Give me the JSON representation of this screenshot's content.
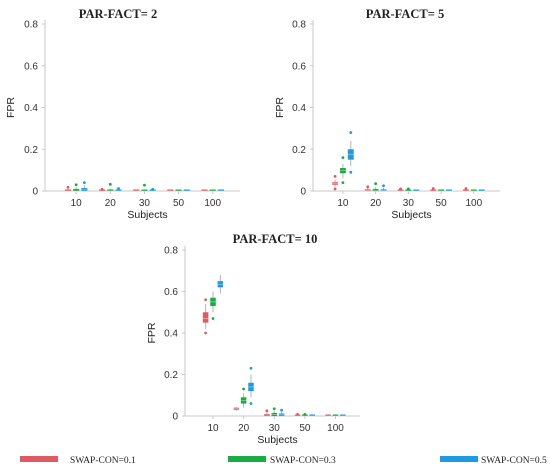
{
  "chart_data": [
    {
      "type": "box",
      "title": "PAR-FACT= 2",
      "xlabel": "Subjects",
      "ylabel": "FPR",
      "ylim": [
        0,
        0.8
      ],
      "yticks": [
        "0",
        "0.2",
        "0.4",
        "0.6",
        "0.8"
      ],
      "categories": [
        "10",
        "20",
        "30",
        "50",
        "100"
      ],
      "series": [
        {
          "name": "SWAP-CON=0.1",
          "boxes": [
            {
              "q1": 0.0,
              "median": 0.0,
              "q3": 0.006,
              "min": 0.0,
              "max": 0.012,
              "outliers": [
                0.018
              ]
            },
            {
              "q1": 0.0,
              "median": 0.0,
              "q3": 0.002,
              "min": 0.0,
              "max": 0.004,
              "outliers": [
                0.008
              ]
            },
            {
              "q1": 0.0,
              "median": 0.0,
              "q3": 0.001,
              "min": 0.0,
              "max": 0.002,
              "outliers": []
            },
            {
              "q1": 0.0,
              "median": 0.0,
              "q3": 0.001,
              "min": 0.0,
              "max": 0.002,
              "outliers": []
            },
            {
              "q1": 0.0,
              "median": 0.0,
              "q3": 0.001,
              "min": 0.0,
              "max": 0.002,
              "outliers": []
            }
          ]
        },
        {
          "name": "SWAP-CON=0.3",
          "boxes": [
            {
              "q1": 0.0,
              "median": 0.0,
              "q3": 0.01,
              "min": 0.0,
              "max": 0.02,
              "outliers": [
                0.03
              ]
            },
            {
              "q1": 0.0,
              "median": 0.0,
              "q3": 0.005,
              "min": 0.0,
              "max": 0.01,
              "outliers": [
                0.032
              ]
            },
            {
              "q1": 0.0,
              "median": 0.0,
              "q3": 0.004,
              "min": 0.0,
              "max": 0.008,
              "outliers": [
                0.028
              ]
            },
            {
              "q1": 0.0,
              "median": 0.0,
              "q3": 0.001,
              "min": 0.0,
              "max": 0.002,
              "outliers": []
            },
            {
              "q1": 0.0,
              "median": 0.0,
              "q3": 0.001,
              "min": 0.0,
              "max": 0.002,
              "outliers": []
            }
          ]
        },
        {
          "name": "SWAP-CON=0.5",
          "boxes": [
            {
              "q1": 0.0,
              "median": 0.005,
              "q3": 0.014,
              "min": 0.0,
              "max": 0.028,
              "outliers": [
                0.04
              ]
            },
            {
              "q1": 0.0,
              "median": 0.0,
              "q3": 0.004,
              "min": 0.0,
              "max": 0.008,
              "outliers": [
                0.012
              ]
            },
            {
              "q1": 0.0,
              "median": 0.0,
              "q3": 0.002,
              "min": 0.0,
              "max": 0.005,
              "outliers": [
                0.008
              ]
            },
            {
              "q1": 0.0,
              "median": 0.0,
              "q3": 0.001,
              "min": 0.0,
              "max": 0.002,
              "outliers": []
            },
            {
              "q1": 0.0,
              "median": 0.0,
              "q3": 0.001,
              "min": 0.0,
              "max": 0.002,
              "outliers": []
            }
          ]
        }
      ]
    },
    {
      "type": "box",
      "title": "PAR-FACT= 5",
      "xlabel": "Subjects",
      "ylabel": "FPR",
      "ylim": [
        0,
        0.8
      ],
      "yticks": [
        "0",
        "0.2",
        "0.4",
        "0.6",
        "0.8"
      ],
      "categories": [
        "10",
        "20",
        "30",
        "50",
        "100"
      ],
      "series": [
        {
          "name": "SWAP-CON=0.1",
          "boxes": [
            {
              "q1": 0.03,
              "median": 0.035,
              "q3": 0.042,
              "min": 0.02,
              "max": 0.055,
              "outliers": [
                0.07,
                0.01
              ]
            },
            {
              "q1": 0.0,
              "median": 0.003,
              "q3": 0.008,
              "min": 0.0,
              "max": 0.014,
              "outliers": [
                0.02
              ]
            },
            {
              "q1": 0.0,
              "median": 0.0,
              "q3": 0.003,
              "min": 0.0,
              "max": 0.006,
              "outliers": [
                0.01
              ]
            },
            {
              "q1": 0.0,
              "median": 0.0,
              "q3": 0.002,
              "min": 0.0,
              "max": 0.004,
              "outliers": [
                0.012
              ]
            },
            {
              "q1": 0.0,
              "median": 0.0,
              "q3": 0.002,
              "min": 0.0,
              "max": 0.004,
              "outliers": [
                0.012
              ]
            }
          ]
        },
        {
          "name": "SWAP-CON=0.3",
          "boxes": [
            {
              "q1": 0.085,
              "median": 0.098,
              "q3": 0.11,
              "min": 0.06,
              "max": 0.13,
              "outliers": [
                0.16,
                0.04
              ]
            },
            {
              "q1": 0.0,
              "median": 0.004,
              "q3": 0.01,
              "min": 0.0,
              "max": 0.02,
              "outliers": [
                0.035
              ]
            },
            {
              "q1": 0.0,
              "median": 0.0,
              "q3": 0.003,
              "min": 0.0,
              "max": 0.006,
              "outliers": [
                0.01
              ]
            },
            {
              "q1": 0.0,
              "median": 0.0,
              "q3": 0.002,
              "min": 0.0,
              "max": 0.004,
              "outliers": []
            },
            {
              "q1": 0.0,
              "median": 0.0,
              "q3": 0.001,
              "min": 0.0,
              "max": 0.002,
              "outliers": []
            }
          ]
        },
        {
          "name": "SWAP-CON=0.5",
          "boxes": [
            {
              "q1": 0.15,
              "median": 0.175,
              "q3": 0.2,
              "min": 0.12,
              "max": 0.24,
              "outliers": [
                0.28,
                0.09
              ]
            },
            {
              "q1": 0.0,
              "median": 0.003,
              "q3": 0.008,
              "min": 0.0,
              "max": 0.016,
              "outliers": [
                0.025
              ]
            },
            {
              "q1": 0.0,
              "median": 0.0,
              "q3": 0.003,
              "min": 0.0,
              "max": 0.006,
              "outliers": []
            },
            {
              "q1": 0.0,
              "median": 0.0,
              "q3": 0.002,
              "min": 0.0,
              "max": 0.004,
              "outliers": []
            },
            {
              "q1": 0.0,
              "median": 0.0,
              "q3": 0.001,
              "min": 0.0,
              "max": 0.002,
              "outliers": []
            }
          ]
        }
      ]
    },
    {
      "type": "box",
      "title": "PAR-FACT= 10",
      "xlabel": "Subjects",
      "ylabel": "FPR",
      "ylim": [
        0,
        0.8
      ],
      "yticks": [
        "0",
        "0.2",
        "0.4",
        "0.6",
        "0.8"
      ],
      "categories": [
        "10",
        "20",
        "30",
        "50",
        "100"
      ],
      "series": [
        {
          "name": "SWAP-CON=0.1",
          "boxes": [
            {
              "q1": 0.45,
              "median": 0.47,
              "q3": 0.5,
              "min": 0.42,
              "max": 0.54,
              "outliers": [
                0.56,
                0.4
              ]
            },
            {
              "q1": 0.03,
              "median": 0.035,
              "q3": 0.04,
              "min": 0.025,
              "max": 0.045,
              "outliers": []
            },
            {
              "q1": 0.0,
              "median": 0.005,
              "q3": 0.01,
              "min": 0.0,
              "max": 0.018,
              "outliers": [
                0.025
              ]
            },
            {
              "q1": 0.0,
              "median": 0.0,
              "q3": 0.002,
              "min": 0.0,
              "max": 0.004,
              "outliers": [
                0.008
              ]
            },
            {
              "q1": 0.0,
              "median": 0.0,
              "q3": 0.001,
              "min": 0.0,
              "max": 0.002,
              "outliers": []
            }
          ]
        },
        {
          "name": "SWAP-CON=0.3",
          "boxes": [
            {
              "q1": 0.53,
              "median": 0.55,
              "q3": 0.57,
              "min": 0.5,
              "max": 0.6,
              "outliers": [
                0.47
              ]
            },
            {
              "q1": 0.06,
              "median": 0.075,
              "q3": 0.09,
              "min": 0.04,
              "max": 0.11,
              "outliers": [
                0.13
              ]
            },
            {
              "q1": 0.0,
              "median": 0.008,
              "q3": 0.015,
              "min": 0.0,
              "max": 0.025,
              "outliers": [
                0.035
              ]
            },
            {
              "q1": 0.0,
              "median": 0.0,
              "q3": 0.002,
              "min": 0.0,
              "max": 0.005,
              "outliers": [
                0.008
              ]
            },
            {
              "q1": 0.0,
              "median": 0.0,
              "q3": 0.001,
              "min": 0.0,
              "max": 0.002,
              "outliers": []
            }
          ]
        },
        {
          "name": "SWAP-CON=0.5",
          "boxes": [
            {
              "q1": 0.62,
              "median": 0.635,
              "q3": 0.65,
              "min": 0.59,
              "max": 0.68,
              "outliers": []
            },
            {
              "q1": 0.12,
              "median": 0.14,
              "q3": 0.16,
              "min": 0.09,
              "max": 0.2,
              "outliers": [
                0.23,
                0.06
              ]
            },
            {
              "q1": 0.0,
              "median": 0.005,
              "q3": 0.012,
              "min": 0.0,
              "max": 0.02,
              "outliers": [
                0.028
              ]
            },
            {
              "q1": 0.0,
              "median": 0.0,
              "q3": 0.003,
              "min": 0.0,
              "max": 0.006,
              "outliers": []
            },
            {
              "q1": 0.0,
              "median": 0.0,
              "q3": 0.001,
              "min": 0.0,
              "max": 0.002,
              "outliers": []
            }
          ]
        }
      ]
    }
  ],
  "legend": {
    "placement": "bottom",
    "items": [
      {
        "label": "SWAP-CON=0.1",
        "color": "#e05a62"
      },
      {
        "label": "SWAP-CON=0.3",
        "color": "#1aab44"
      },
      {
        "label": "SWAP-CON=0.5",
        "color": "#1e9ae0"
      }
    ]
  }
}
